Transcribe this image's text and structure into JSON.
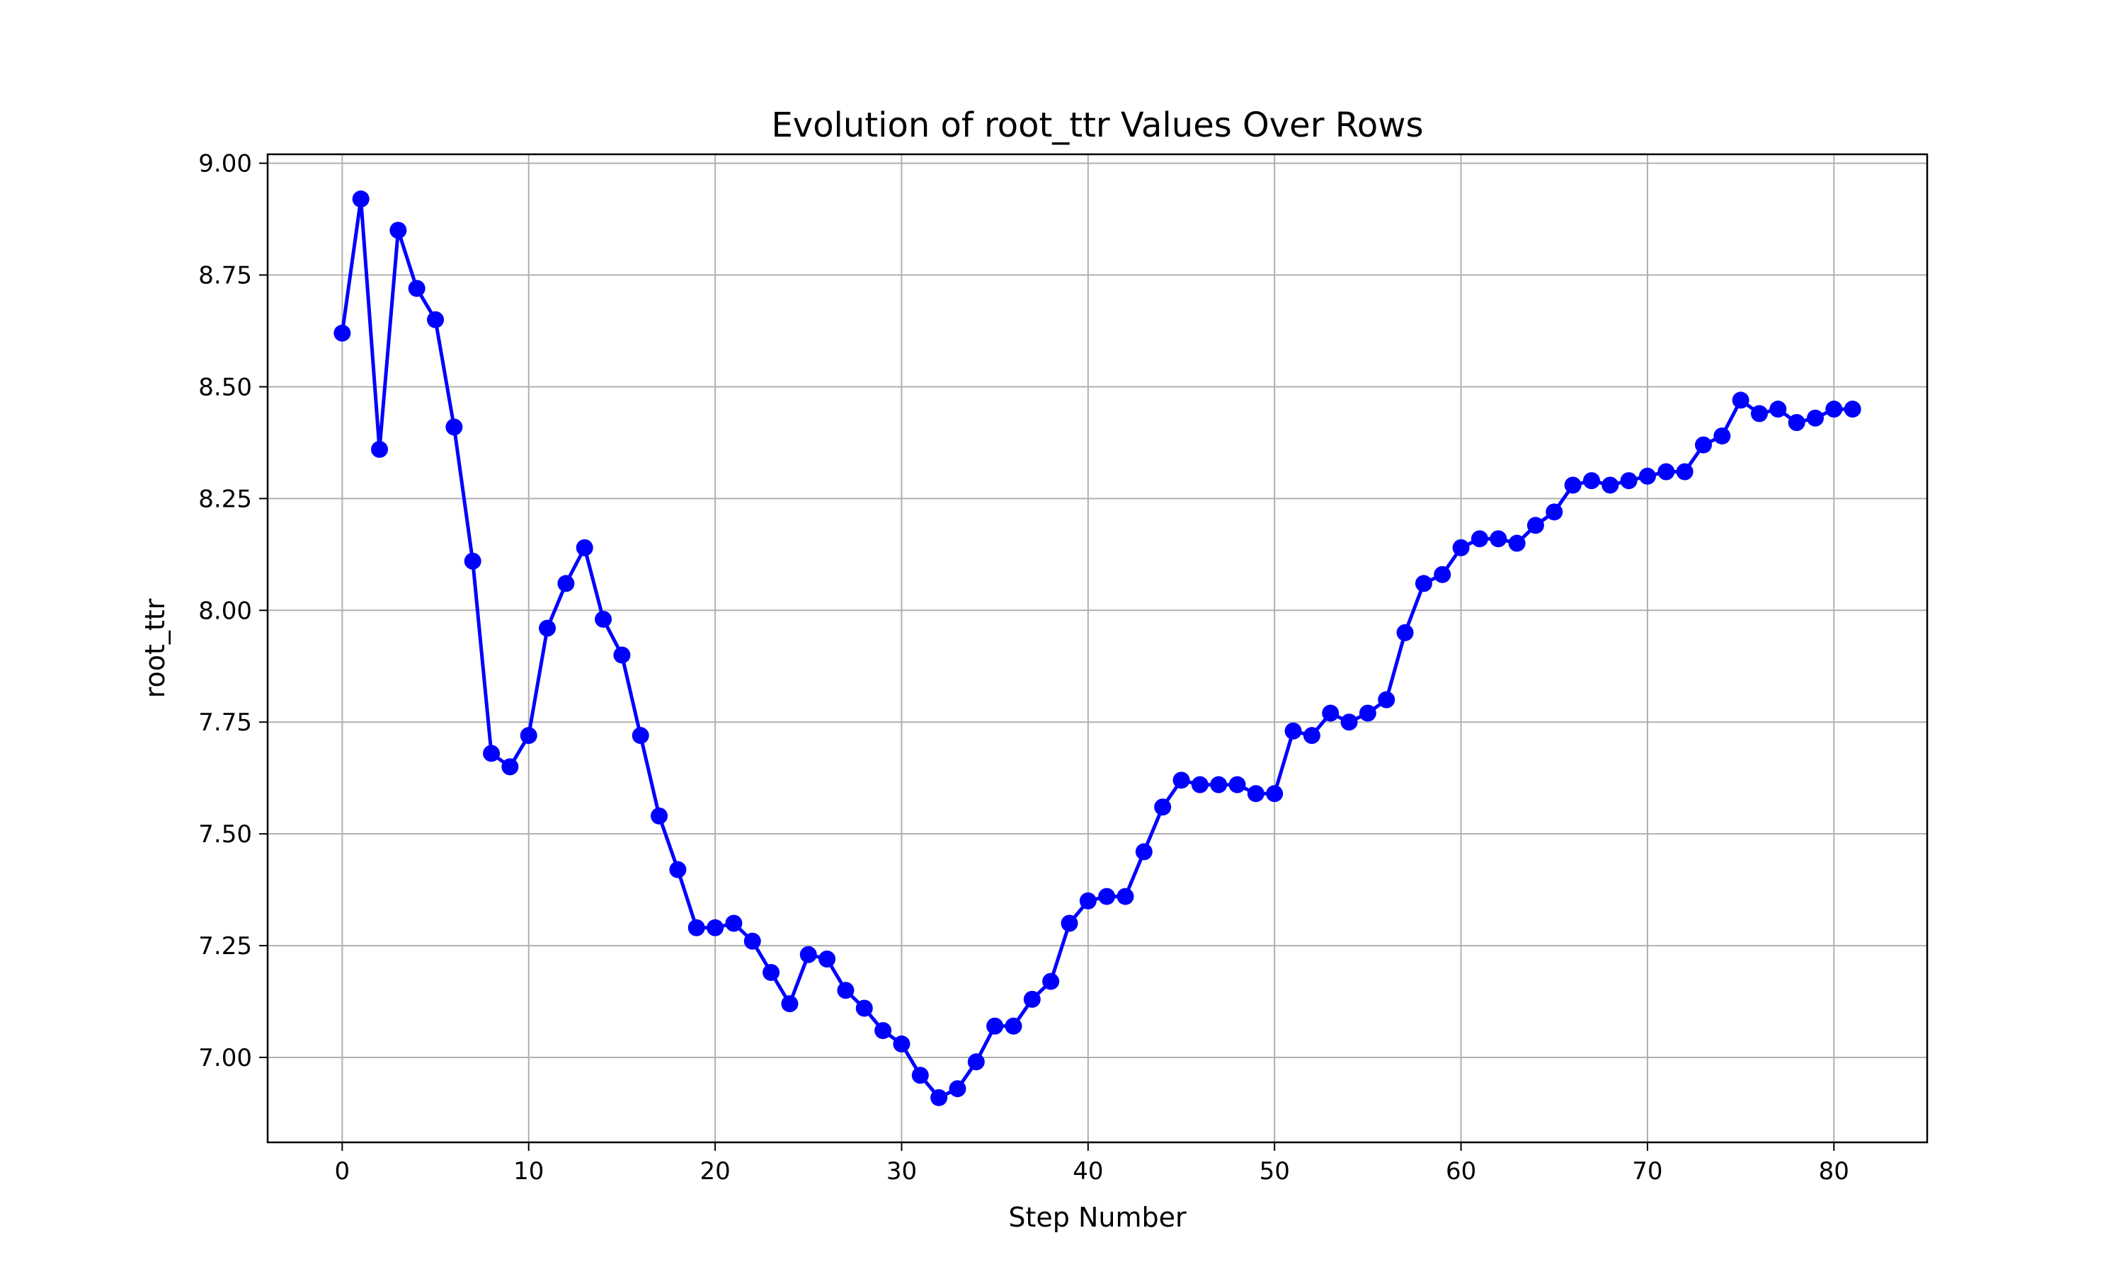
{
  "chart_data": {
    "type": "line",
    "title": "Evolution of root_ttr Values Over Rows",
    "xlabel": "Step Number",
    "ylabel": "root_ttr",
    "xlim": [
      -4,
      85
    ],
    "ylim": [
      6.81,
      9.02
    ],
    "grid": true,
    "marker": "circle",
    "color": "#0000ff",
    "xticks": [
      0,
      10,
      20,
      30,
      40,
      50,
      60,
      70,
      80
    ],
    "xtick_labels": [
      "0",
      "10",
      "20",
      "30",
      "40",
      "50",
      "60",
      "70",
      "80"
    ],
    "yticks": [
      7.0,
      7.25,
      7.5,
      7.75,
      8.0,
      8.25,
      8.5,
      8.75,
      9.0
    ],
    "ytick_labels": [
      "7.00",
      "7.25",
      "7.50",
      "7.75",
      "8.00",
      "8.25",
      "8.50",
      "8.75",
      "9.00"
    ],
    "x": [
      0,
      1,
      2,
      3,
      4,
      5,
      6,
      7,
      8,
      9,
      10,
      11,
      12,
      13,
      14,
      15,
      16,
      17,
      18,
      19,
      20,
      21,
      22,
      23,
      24,
      25,
      26,
      27,
      28,
      29,
      30,
      31,
      32,
      33,
      34,
      35,
      36,
      37,
      38,
      39,
      40,
      41,
      42,
      43,
      44,
      45,
      46,
      47,
      48,
      49,
      50,
      51,
      52,
      53,
      54,
      55,
      56,
      57,
      58,
      59,
      60,
      61,
      62,
      63,
      64,
      65,
      66,
      67,
      68,
      69,
      70,
      71,
      72,
      73,
      74,
      75,
      76,
      77,
      78,
      79,
      80,
      81
    ],
    "series": [
      {
        "values": [
          8.62,
          8.92,
          8.36,
          8.85,
          8.72,
          8.65,
          8.41,
          8.11,
          7.68,
          7.65,
          7.72,
          7.96,
          8.06,
          8.14,
          7.98,
          7.9,
          7.72,
          7.54,
          7.42,
          7.29,
          7.29,
          7.3,
          7.26,
          7.19,
          7.12,
          7.23,
          7.22,
          7.15,
          7.11,
          7.06,
          7.03,
          6.96,
          6.91,
          6.93,
          6.99,
          7.07,
          7.07,
          7.13,
          7.17,
          7.3,
          7.35,
          7.36,
          7.36,
          7.46,
          7.56,
          7.62,
          7.61,
          7.61,
          7.61,
          7.59,
          7.59,
          7.73,
          7.72,
          7.77,
          7.75,
          7.77,
          7.8,
          7.95,
          8.06,
          8.08,
          8.14,
          8.16,
          8.16,
          8.15,
          8.19,
          8.22,
          8.28,
          8.29,
          8.28,
          8.29,
          8.3,
          8.31,
          8.31,
          8.37,
          8.39,
          8.47,
          8.44,
          8.45,
          8.42,
          8.43,
          8.45,
          8.45
        ]
      }
    ]
  }
}
